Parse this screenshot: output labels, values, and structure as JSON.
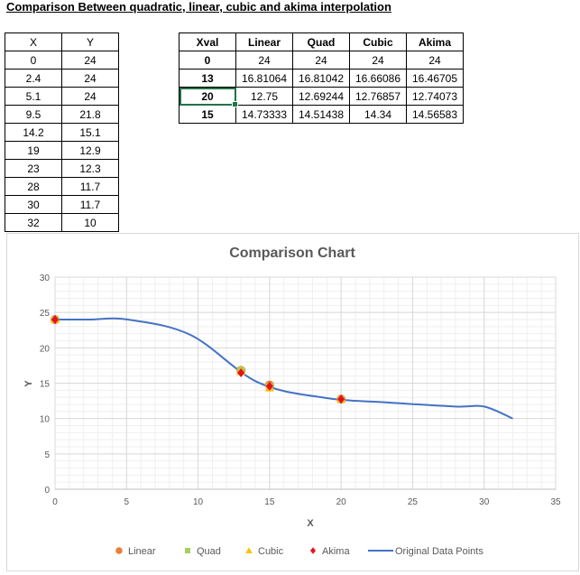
{
  "sheet": {
    "title": "Comparison Between quadratic, linear, cubic and akima interpolation",
    "table1": {
      "headers": [
        "X",
        "Y"
      ],
      "rows": [
        [
          "0",
          "24"
        ],
        [
          "2.4",
          "24"
        ],
        [
          "5.1",
          "24"
        ],
        [
          "9.5",
          "21.8"
        ],
        [
          "14.2",
          "15.1"
        ],
        [
          "19",
          "12.9"
        ],
        [
          "23",
          "12.3"
        ],
        [
          "28",
          "11.7"
        ],
        [
          "30",
          "11.7"
        ],
        [
          "32",
          "10"
        ]
      ]
    },
    "table2": {
      "headers": [
        "Xval",
        "Linear",
        "Quad",
        "Cubic",
        "Akima"
      ],
      "rows": [
        [
          "0",
          "24",
          "24",
          "24",
          "24"
        ],
        [
          "13",
          "16.81064",
          "16.81042",
          "16.66086",
          "16.46705"
        ],
        [
          "20",
          "12.75",
          "12.69244",
          "12.76857",
          "12.74073"
        ],
        [
          "15",
          "14.73333",
          "14.51438",
          "14.34",
          "14.56583"
        ]
      ]
    }
  },
  "chart_data": {
    "type": "scatter",
    "title": "Comparison Chart",
    "xlabel": "X",
    "ylabel": "Y",
    "xlim": [
      0,
      35
    ],
    "ylim": [
      0,
      30
    ],
    "xticks": [
      0,
      5,
      10,
      15,
      20,
      25,
      30,
      35
    ],
    "yticks": [
      0,
      5,
      10,
      15,
      20,
      25,
      30
    ],
    "grid": true,
    "legend_position": "bottom",
    "series": [
      {
        "name": "Linear",
        "kind": "marker",
        "marker": "circle",
        "color": "#ED7D31",
        "x": [
          0,
          13,
          20,
          15
        ],
        "y": [
          24,
          16.81064,
          12.75,
          14.73333
        ]
      },
      {
        "name": "Quad",
        "kind": "marker",
        "marker": "square",
        "color": "#A5D05A",
        "x": [
          0,
          13,
          20,
          15
        ],
        "y": [
          24,
          16.81042,
          12.69244,
          14.51438
        ]
      },
      {
        "name": "Cubic",
        "kind": "marker",
        "marker": "triangle",
        "color": "#FFC000",
        "x": [
          0,
          13,
          20,
          15
        ],
        "y": [
          24,
          16.66086,
          12.76857,
          14.34
        ]
      },
      {
        "name": "Akima",
        "kind": "marker",
        "marker": "diamond",
        "color": "#E8101C",
        "x": [
          0,
          13,
          20,
          15
        ],
        "y": [
          24,
          16.46705,
          12.74073,
          14.56583
        ]
      },
      {
        "name": "Original Data Points",
        "kind": "line",
        "color": "#4472C4",
        "x": [
          0,
          2.4,
          5.1,
          9.5,
          14.2,
          19,
          23,
          28,
          30,
          32
        ],
        "y": [
          24,
          24,
          24,
          21.8,
          15.1,
          12.9,
          12.3,
          11.7,
          11.7,
          10
        ]
      }
    ]
  }
}
